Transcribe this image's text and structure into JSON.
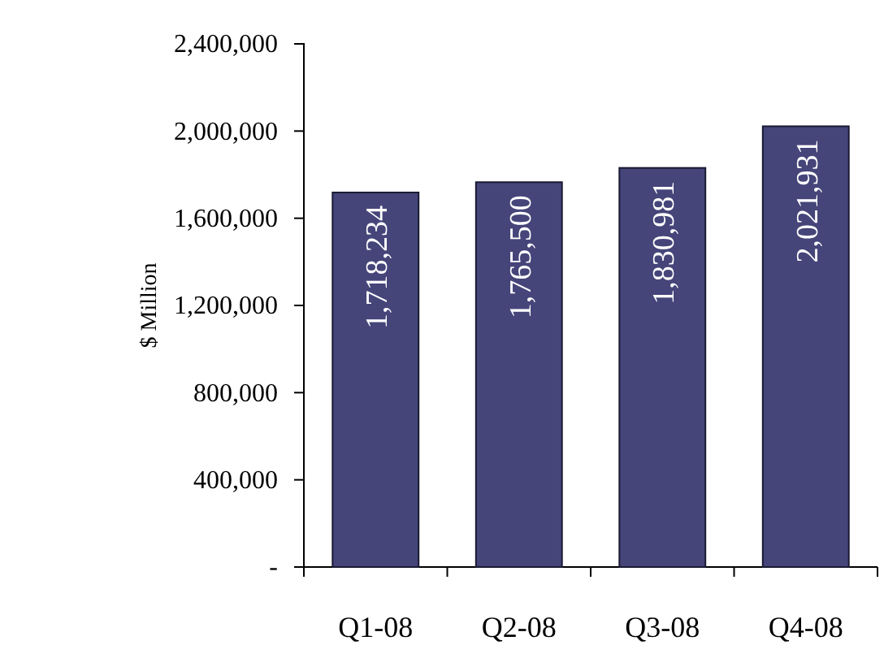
{
  "chart_data": {
    "type": "bar",
    "ylabel": "$ Million",
    "categories": [
      "Q1-08",
      "Q2-08",
      "Q3-08",
      "Q4-08"
    ],
    "values": [
      1718234,
      1765500,
      1830981,
      2021931
    ],
    "color": "#45457a",
    "ylim": [
      0,
      2400000
    ],
    "yticks": [
      {
        "value": 0,
        "label": "-"
      },
      {
        "value": 400000,
        "label": "400,000"
      },
      {
        "value": 800000,
        "label": "800,000"
      },
      {
        "value": 1200000,
        "label": "1,200,000"
      },
      {
        "value": 1600000,
        "label": "1,600,000"
      },
      {
        "value": 2000000,
        "label": "2,000,000"
      },
      {
        "value": 2400000,
        "label": "2,400,000"
      }
    ],
    "value_labels": [
      "1,718,234",
      "1,765,500",
      "1,830,981",
      "2,021,931"
    ],
    "grid": false
  }
}
